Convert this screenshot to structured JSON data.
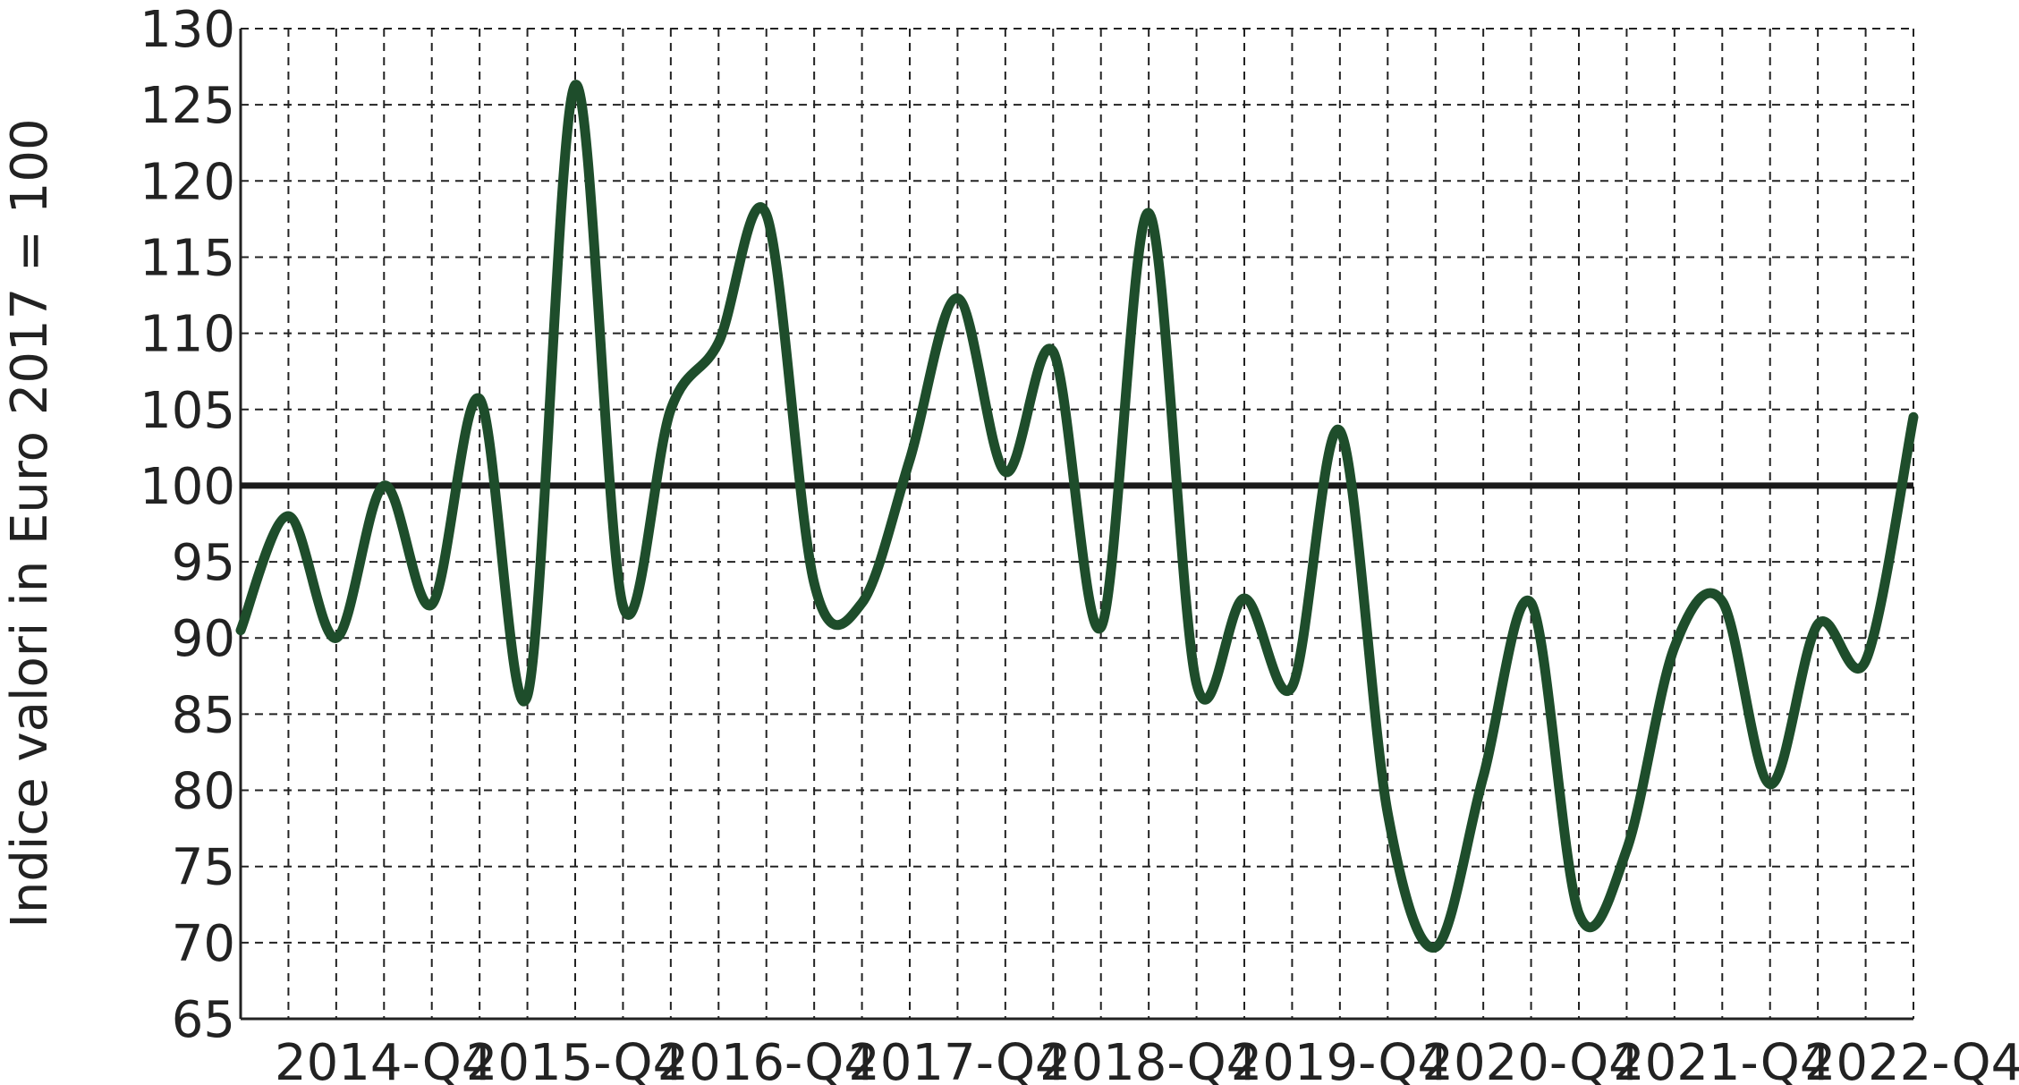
{
  "chart_data": {
    "type": "line",
    "y_label": "Indice valori in Euro 2017 = 100",
    "categories": [
      null,
      null,
      null,
      "2014-Q4",
      null,
      null,
      null,
      "2015-Q4",
      null,
      null,
      null,
      "2016-Q4",
      null,
      null,
      null,
      "2017-Q4",
      null,
      null,
      null,
      "2018-Q4",
      null,
      null,
      null,
      "2019-Q4",
      null,
      null,
      null,
      "2020-Q4",
      null,
      null,
      null,
      "2021-Q4",
      null,
      null,
      null,
      "2022-Q4"
    ],
    "series": [
      {
        "name": "Indice",
        "color": "#1e4d2b",
        "values": [
          90.5,
          98.0,
          90.0,
          100.0,
          92.2,
          105.7,
          86.2,
          126.3,
          92.1,
          105.0,
          109.4,
          117.8,
          93.6,
          92.3,
          101.7,
          112.3,
          100.9,
          108.8,
          90.7,
          117.9,
          87.0,
          92.6,
          86.8,
          103.6,
          78.5,
          69.7,
          80.9,
          92.3,
          71.9,
          76.1,
          89.4,
          92.4,
          80.4,
          90.9,
          88.5,
          104.5
        ]
      }
    ],
    "reference_line": 100,
    "ylim": [
      65,
      130
    ],
    "yticks": [
      65,
      70,
      75,
      80,
      85,
      90,
      95,
      100,
      105,
      110,
      115,
      120,
      125,
      130
    ],
    "grid": true
  }
}
